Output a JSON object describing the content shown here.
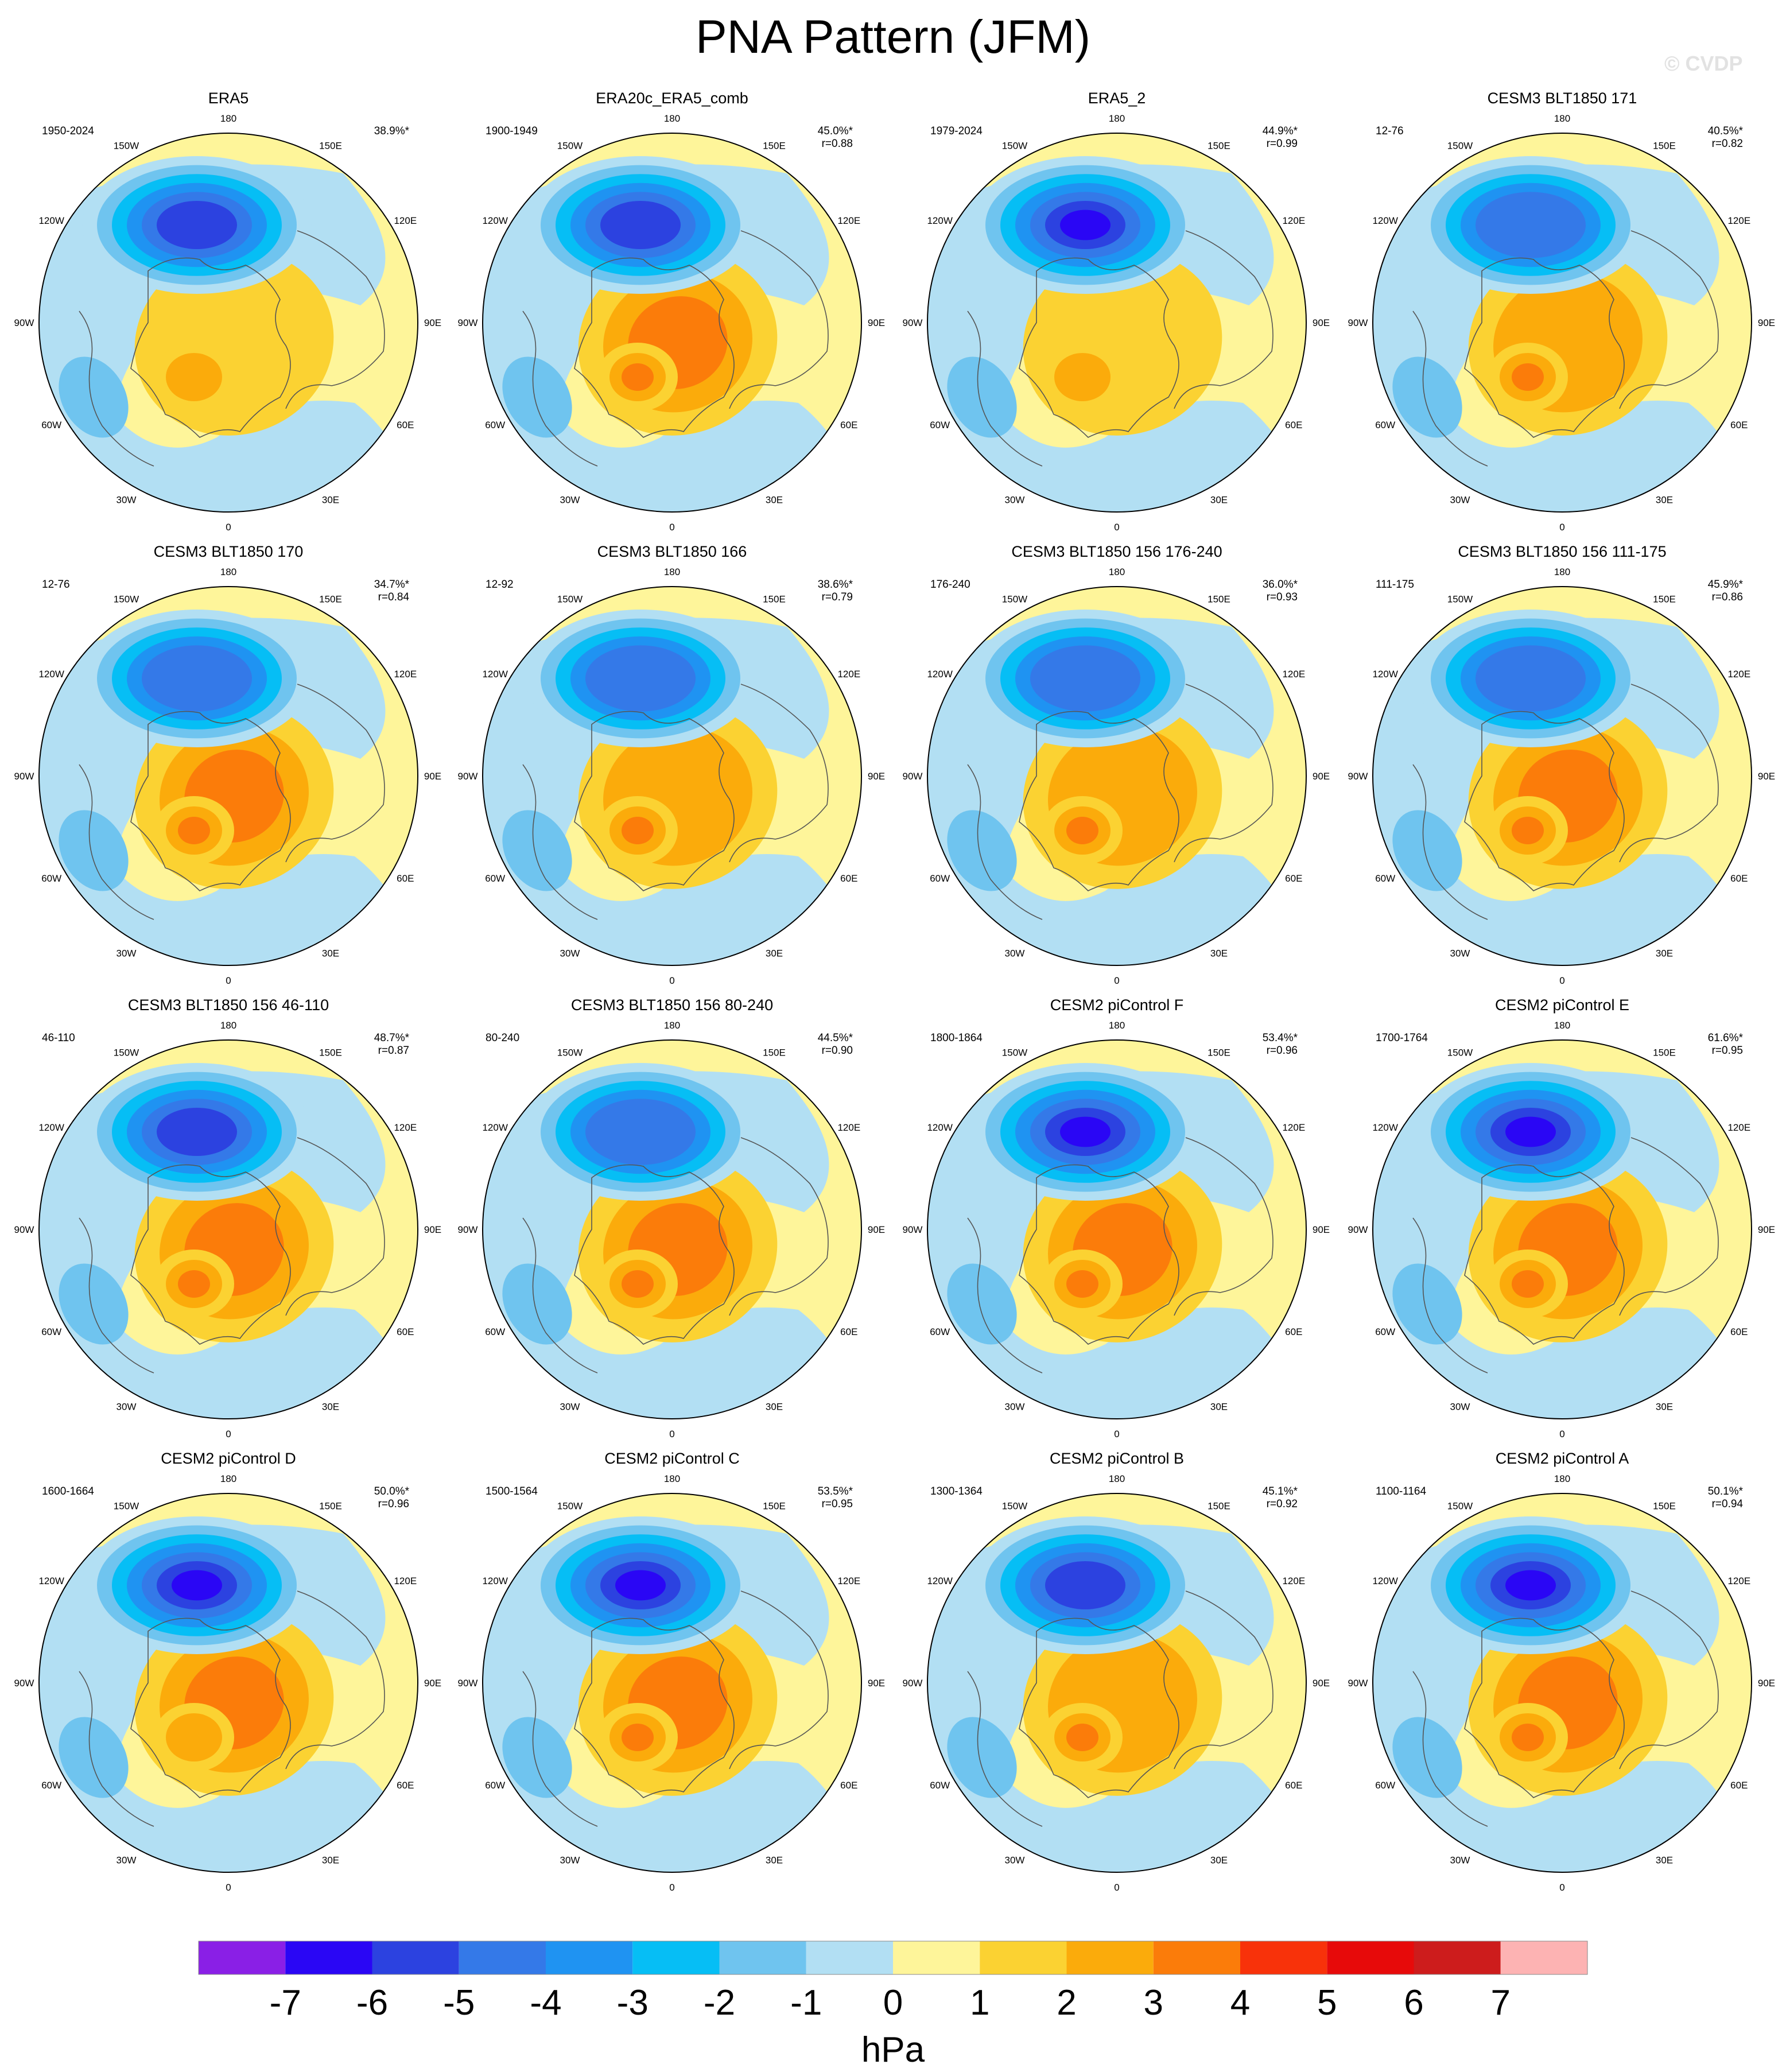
{
  "title": "PNA Pattern (JFM)",
  "watermark": "© CVDP",
  "unit": "hPa",
  "colorbar": {
    "labels": [
      "-7",
      "-6",
      "-5",
      "-4",
      "-3",
      "-2",
      "-1",
      "0",
      "1",
      "2",
      "3",
      "4",
      "5",
      "6",
      "7"
    ],
    "colors": [
      "#8a1fe6",
      "#2a06f5",
      "#2c42e0",
      "#3479e8",
      "#1f93f2",
      "#06bef5",
      "#6fc4ef",
      "#b2dff3",
      "#fef59a",
      "#fbd232",
      "#fbab0b",
      "#fb7c0a",
      "#f8320a",
      "#e70a0a",
      "#cd1c1c",
      "#fdb3b3"
    ]
  },
  "lon_labels": [
    "180",
    "150E",
    "120E",
    "90E",
    "60E",
    "30E",
    "0",
    "30W",
    "60W",
    "90W",
    "120W",
    "150W"
  ],
  "panels": [
    {
      "title": "ERA5",
      "years": "1950-2024",
      "pct": "38.9%*",
      "r": "",
      "low": -6,
      "high": 1,
      "ha": 2
    },
    {
      "title": "ERA20c_ERA5_comb",
      "years": "1900-1949",
      "pct": "45.0%*",
      "r": "r=0.88",
      "low": -6,
      "high": 3,
      "ha": 3
    },
    {
      "title": "ERA5_2",
      "years": "1979-2024",
      "pct": "44.9%*",
      "r": "r=0.99",
      "low": -7,
      "high": 1,
      "ha": 2
    },
    {
      "title": "CESM3 BLT1850 171",
      "years": "12-76",
      "pct": "40.5%*",
      "r": "r=0.82",
      "low": -5,
      "high": 2,
      "ha": 3
    },
    {
      "title": "CESM3 BLT1850 170",
      "years": "12-76",
      "pct": "34.7%*",
      "r": "r=0.84",
      "low": -5,
      "high": 3,
      "ha": 3
    },
    {
      "title": "CESM3 BLT1850 166",
      "years": "12-92",
      "pct": "38.6%*",
      "r": "r=0.79",
      "low": -5,
      "high": 2,
      "ha": 3
    },
    {
      "title": "CESM3 BLT1850 156 176-240",
      "years": "176-240",
      "pct": "36.0%*",
      "r": "r=0.93",
      "low": -5,
      "high": 2,
      "ha": 3
    },
    {
      "title": "CESM3 BLT1850 156 111-175",
      "years": "111-175",
      "pct": "45.9%*",
      "r": "r=0.86",
      "low": -5,
      "high": 3,
      "ha": 3
    },
    {
      "title": "CESM3 BLT1850 156 46-110",
      "years": "46-110",
      "pct": "48.7%*",
      "r": "r=0.87",
      "low": -6,
      "high": 3,
      "ha": 3
    },
    {
      "title": "CESM3 BLT1850 156 80-240",
      "years": "80-240",
      "pct": "44.5%*",
      "r": "r=0.90",
      "low": -5,
      "high": 3,
      "ha": 3
    },
    {
      "title": "CESM2 piControl F",
      "years": "1800-1864",
      "pct": "53.4%*",
      "r": "r=0.96",
      "low": -7,
      "high": 3,
      "ha": 3
    },
    {
      "title": "CESM2 piControl E",
      "years": "1700-1764",
      "pct": "61.6%*",
      "r": "r=0.95",
      "low": -7,
      "high": 3,
      "ha": 3
    },
    {
      "title": "CESM2 piControl D",
      "years": "1600-1664",
      "pct": "50.0%*",
      "r": "r=0.96",
      "low": -7,
      "high": 3,
      "ha": 2
    },
    {
      "title": "CESM2 piControl C",
      "years": "1500-1564",
      "pct": "53.5%*",
      "r": "r=0.95",
      "low": -7,
      "high": 3,
      "ha": 3
    },
    {
      "title": "CESM2 piControl B",
      "years": "1300-1364",
      "pct": "45.1%*",
      "r": "r=0.92",
      "low": -6,
      "high": 2,
      "ha": 3
    },
    {
      "title": "CESM2 piControl A",
      "years": "1100-1164",
      "pct": "50.1%*",
      "r": "r=0.94",
      "low": -7,
      "high": 3,
      "ha": 3
    }
  ]
}
